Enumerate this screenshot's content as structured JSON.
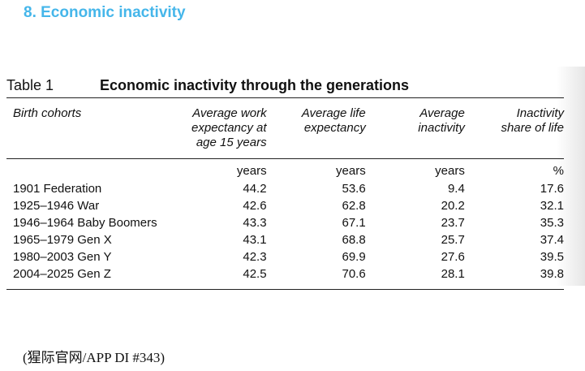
{
  "heading": "8. Economic inactivity",
  "table": {
    "number": "Table 1",
    "title": "Economic inactivity through the generations",
    "columns": [
      "Birth cohorts",
      "Average work expectancy at age 15 years",
      "Average life expectancy",
      "Average inactivity",
      "Inactivity share of life"
    ],
    "units": [
      "",
      "years",
      "years",
      "years",
      "%"
    ],
    "rows": [
      [
        "1901 Federation",
        "44.2",
        "53.6",
        "9.4",
        "17.6"
      ],
      [
        "1925–1946 War",
        "42.6",
        "62.8",
        "20.2",
        "32.1"
      ],
      [
        "1946–1964 Baby Boomers",
        "43.3",
        "67.1",
        "23.7",
        "35.3"
      ],
      [
        "1965–1979 Gen X",
        "43.1",
        "68.8",
        "25.7",
        "37.4"
      ],
      [
        "1980–2003 Gen Y",
        "42.3",
        "69.9",
        "27.6",
        "39.5"
      ],
      [
        "2004–2025 Gen Z",
        "42.5",
        "70.6",
        "28.1",
        "39.8"
      ]
    ]
  },
  "source": "(猩际官网/APP DI #343)"
}
